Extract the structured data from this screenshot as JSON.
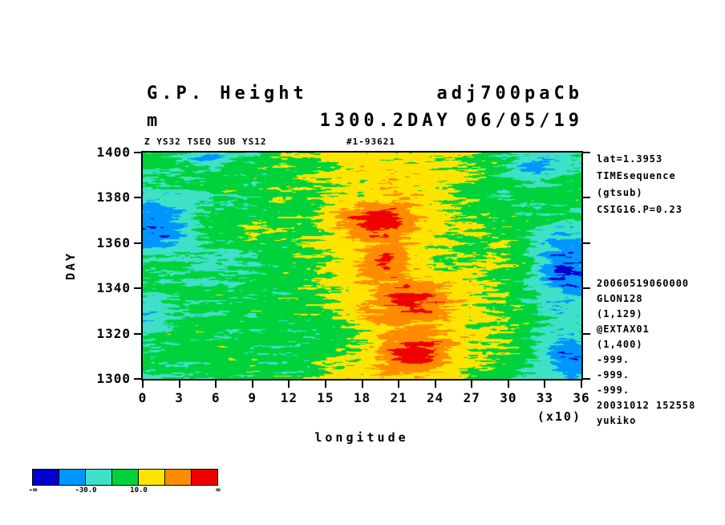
{
  "header": {
    "title_left": "G.P. Height",
    "title_right": "adj700paCb",
    "subtitle_left": "m",
    "subtitle_right": "1300.2DAY 06/05/19",
    "meta_left": "Z YS32 TSEQ SUB YS12",
    "meta_right": "#1-93621"
  },
  "side_notes": {
    "top": [
      "lat=1.3953",
      "TIMEsequence",
      "(gtsub)",
      "CSIG16.P=0.23"
    ],
    "bottom": [
      "20060519060000",
      "GLON128",
      "(1,129)",
      "@EXTAX01",
      "(1,400)",
      "-999.",
      "-999.",
      "-999.",
      "20031012 152558",
      "yukiko"
    ]
  },
  "chart_data": {
    "type": "heatmap",
    "title": "G.P. Height adj700paCb",
    "subtitle": "1300.2DAY 06/05/19",
    "units": "m",
    "xlabel": "longitude",
    "x_scale_note": "(x10)",
    "ylabel": "DAY",
    "x_ticks": [
      0,
      3,
      6,
      9,
      12,
      15,
      18,
      21,
      24,
      27,
      30,
      33,
      36
    ],
    "y_ticks": [
      1400,
      1380,
      1360,
      1340,
      1320,
      1300
    ],
    "xlim": [
      0,
      360
    ],
    "ylim": [
      1300,
      1400
    ],
    "grid": false,
    "levels": [
      -50,
      -30,
      -10,
      10,
      30,
      50
    ],
    "colorbar": {
      "colors": [
        "#0000cc",
        "#0096ff",
        "#3fe0c8",
        "#00d23c",
        "#ffe400",
        "#ff8c00",
        "#ee0000"
      ],
      "tick_labels": [
        {
          "text": "-∞",
          "boundary": 0
        },
        {
          "text": "-30.0",
          "boundary": 2
        },
        {
          "text": "10.0",
          "boundary": 4
        },
        {
          "text": "∞",
          "boundary": 7
        }
      ]
    },
    "field": {
      "description": "geopotential height anomaly, positive band near lon 180-240 with red cores, negative pockets at east/west edges",
      "seed": 7,
      "background": -8,
      "center_band": {
        "x": 0.56,
        "tilt": 0.06,
        "sigma": 0.22,
        "amp": 26
      },
      "octaves": [
        {
          "sx": 5,
          "sy": 6,
          "amp": 9
        },
        {
          "sx": 16,
          "sy": 70,
          "amp": 10
        },
        {
          "sx": 40,
          "sy": 150,
          "amp": 7
        },
        {
          "sx": 90,
          "sy": 220,
          "amp": 5
        }
      ],
      "blobs": [
        {
          "x": 0.53,
          "y": 0.3,
          "sx": 0.06,
          "sy": 0.055,
          "amp": 42
        },
        {
          "x": 0.55,
          "y": 0.48,
          "sx": 0.05,
          "sy": 0.05,
          "amp": 34
        },
        {
          "x": 0.61,
          "y": 0.65,
          "sx": 0.065,
          "sy": 0.07,
          "amp": 42
        },
        {
          "x": 0.62,
          "y": 0.88,
          "sx": 0.06,
          "sy": 0.05,
          "amp": 42
        },
        {
          "x": 0.04,
          "y": 0.32,
          "sx": 0.06,
          "sy": 0.08,
          "amp": -40
        },
        {
          "x": 0.15,
          "y": 0.02,
          "sx": 0.04,
          "sy": 0.04,
          "amp": -26
        },
        {
          "x": 0.01,
          "y": 0.7,
          "sx": 0.035,
          "sy": 0.06,
          "amp": -20
        },
        {
          "x": 0.96,
          "y": 0.5,
          "sx": 0.05,
          "sy": 0.12,
          "amp": -42
        },
        {
          "x": 0.97,
          "y": 0.9,
          "sx": 0.05,
          "sy": 0.08,
          "amp": -38
        },
        {
          "x": 0.89,
          "y": 0.05,
          "sx": 0.04,
          "sy": 0.05,
          "amp": -28
        }
      ]
    }
  }
}
